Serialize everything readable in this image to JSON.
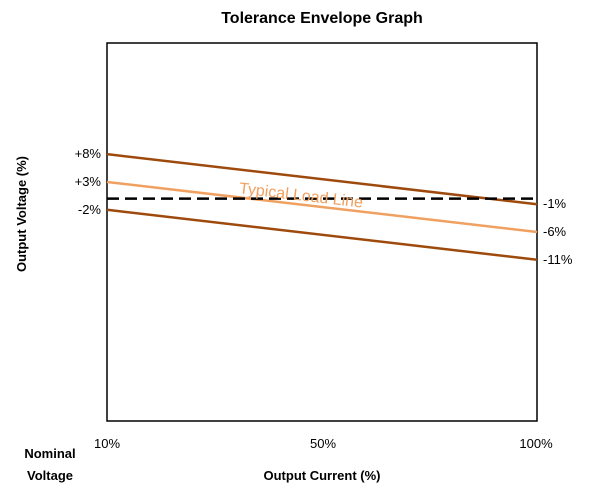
{
  "chart_data": {
    "type": "line",
    "title": "Tolerance Envelope Graph",
    "xlabel": "Output Current (%)",
    "ylabel": "Output Voltage (%)",
    "corner_label_line1": "Nominal",
    "corner_label_line2": "Voltage",
    "x_ticks": [
      "10%",
      "50%",
      "100%"
    ],
    "x": [
      10,
      100
    ],
    "xlim": [
      10,
      100
    ],
    "ylim": [
      -40,
      28
    ],
    "grid": false,
    "series": [
      {
        "values": [
          8,
          -1
        ],
        "color": "#9e4a0d",
        "style": "solid",
        "start_label": "+8%",
        "end_label": "-1%"
      },
      {
        "name": "Typical Load Line",
        "values": [
          3,
          -6
        ],
        "color": "#f0a060",
        "style": "solid",
        "start_label": "+3%",
        "end_label": "-6%"
      },
      {
        "values": [
          -2,
          -11
        ],
        "color": "#9e4a0d",
        "style": "solid",
        "start_label": "-2%",
        "end_label": "-11%"
      },
      {
        "values": [
          0,
          0
        ],
        "color": "#000000",
        "style": "dashed"
      }
    ]
  }
}
